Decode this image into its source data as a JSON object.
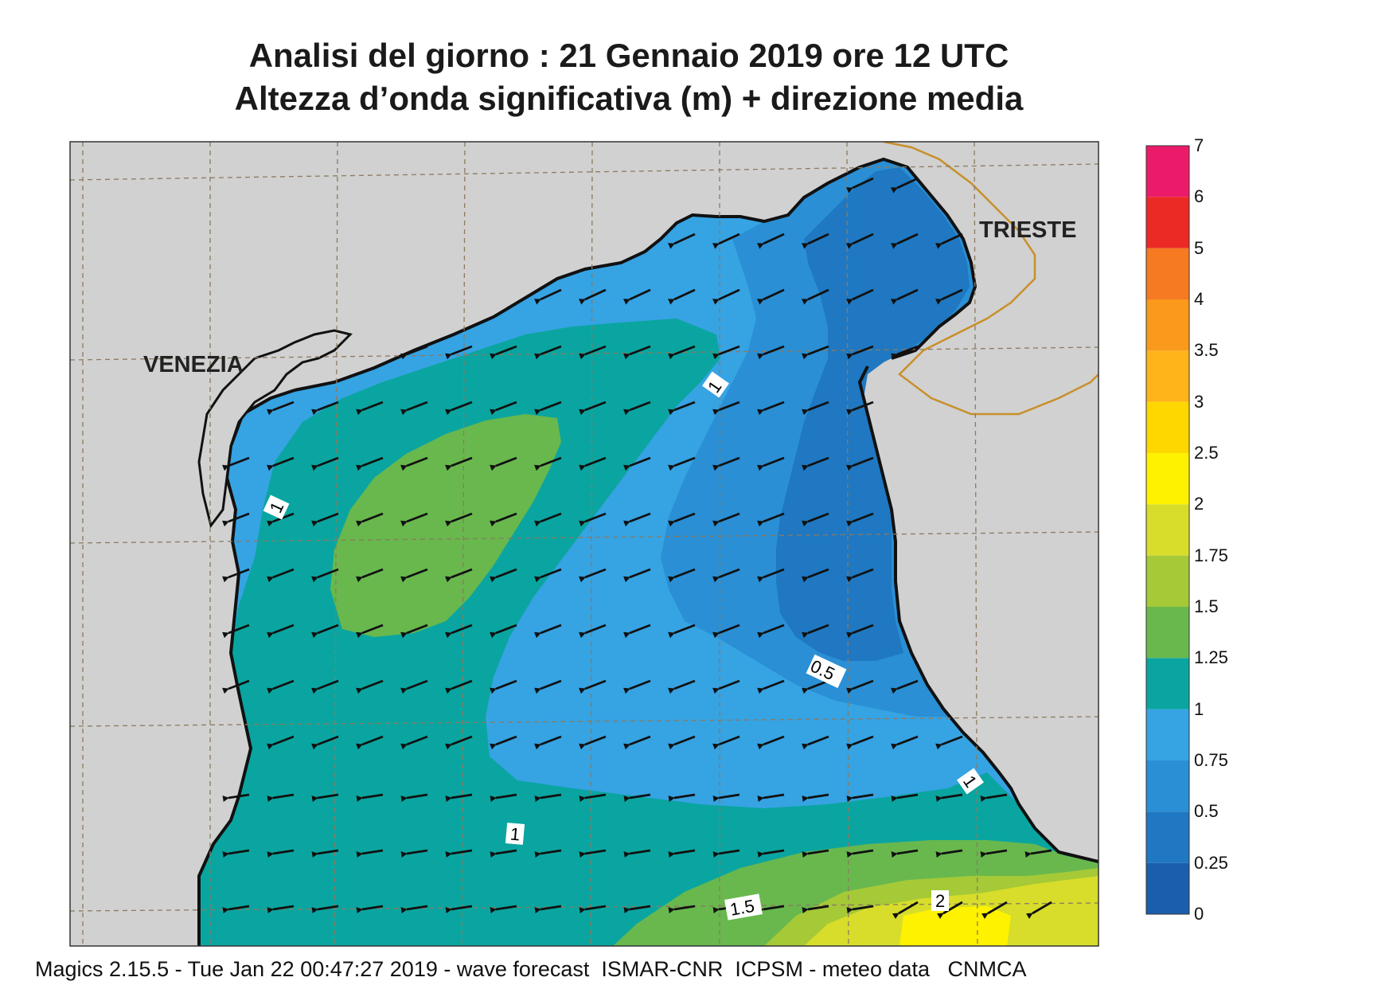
{
  "title_line1": "Analisi del giorno :  21  Gennaio  2019   ore 12 UTC",
  "title_line2": "Altezza d’onda significativa (m) + direzione media",
  "footer": "Magics 2.15.5 - Tue Jan 22 00:47:27 2019 - wave forecast  ISMAR-CNR  ICPSM - meteo data   CNMCA",
  "cities": [
    "VENEZIA",
    "TRIESTE"
  ],
  "contour_labels": [
    "1",
    "1",
    "0.5",
    "1",
    "1",
    "1.5",
    "2"
  ],
  "colorbar": {
    "labels": [
      "0",
      "0.25",
      "0.5",
      "0.75",
      "1",
      "1.25",
      "1.5",
      "1.75",
      "2",
      "2.5",
      "3",
      "3.5",
      "4",
      "5",
      "6",
      "7"
    ],
    "colors": [
      "#1a5fad",
      "#1f78c1",
      "#2a8fd4",
      "#36a3e3",
      "#0aa5a0",
      "#68b84e",
      "#a5c937",
      "#d7dd2a",
      "#fff200",
      "#ffd700",
      "#ffb419",
      "#f99a1c",
      "#f57a22",
      "#ec2a25",
      "#ec1b6a"
    ]
  },
  "wave_direction": "toward west-southwest",
  "colors": {
    "land": "#d1d1d1",
    "coast": "#111111",
    "border": "#c8902a",
    "grid": "#8c7a60"
  }
}
